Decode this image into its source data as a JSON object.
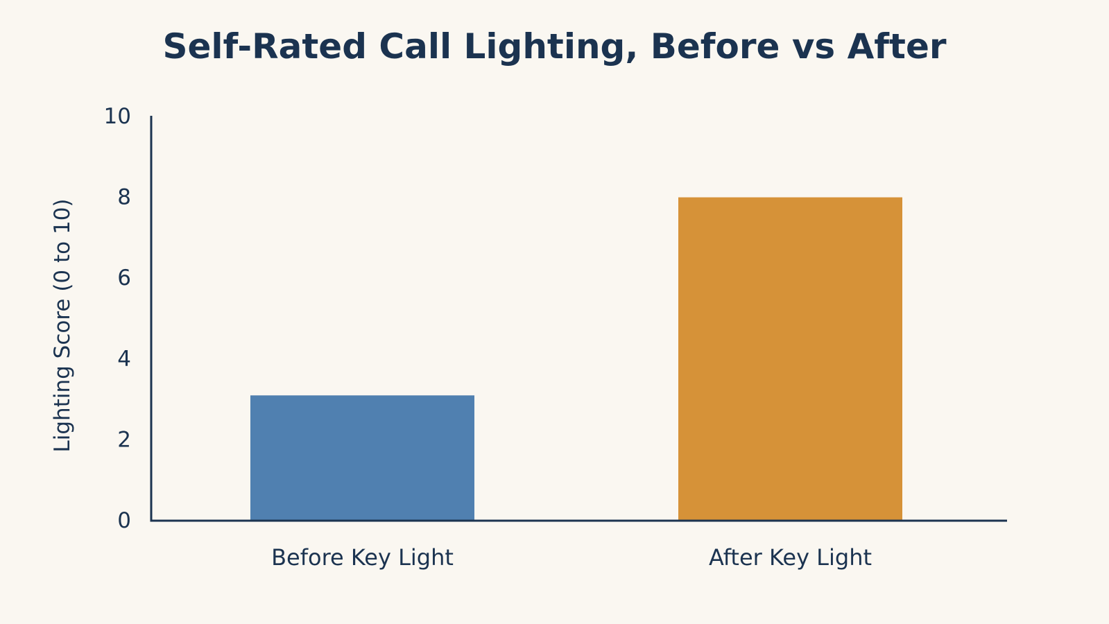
{
  "chart_data": {
    "type": "bar",
    "title": "Self-Rated Call Lighting, Before vs After",
    "xlabel": "",
    "ylabel": "Lighting Score (0 to 10)",
    "categories": [
      "Before Key Light",
      "After Key Light"
    ],
    "values": [
      3.1,
      8.0
    ],
    "colors": [
      "#5080b0",
      "#d69238"
    ],
    "ylim": [
      0,
      10
    ],
    "yticks": [
      "0",
      "2",
      "4",
      "6",
      "8",
      "10"
    ],
    "grid": false
  },
  "colors": {
    "background": "#faf7f1",
    "text": "#1b3350",
    "axis": "#1b3350"
  }
}
